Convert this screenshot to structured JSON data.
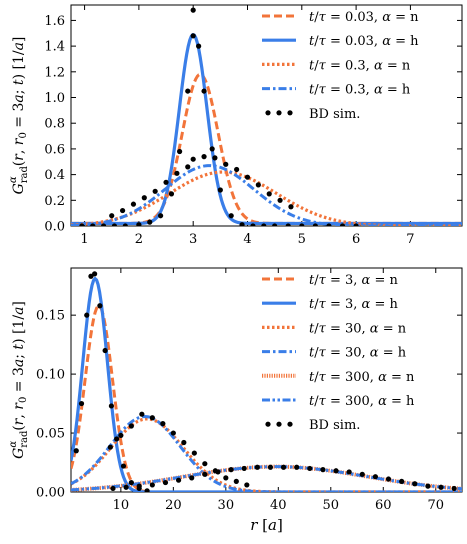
{
  "chart_data": [
    {
      "type": "line",
      "ylabel": "G_rad^α(r, r_0 = 3a; t) [1/a]",
      "xlabel": "",
      "xlim": [
        0.75,
        7.95
      ],
      "ylim": [
        0,
        1.72
      ],
      "xticks": [
        1,
        2,
        3,
        4,
        5,
        6,
        7
      ],
      "yticks": [
        0.0,
        0.2,
        0.4,
        0.6,
        0.8,
        1.0,
        1.2,
        1.4,
        1.6
      ],
      "ytick_labels": [
        "0.0",
        "0.2",
        "0.4",
        "0.6",
        "0.8",
        "1.0",
        "1.2",
        "1.4",
        "1.6"
      ],
      "legend_position": "top-right",
      "series": [
        {
          "name": "t/τ = 0.03, α = n",
          "legend": "t/τ = 0.03, α = n",
          "color": "#f2743a",
          "style": "dashed",
          "gauss": {
            "mu": 3.13,
            "sigma": 0.33,
            "A": 1.16,
            "offset": 0.02
          }
        },
        {
          "name": "t/τ = 0.03, α = h",
          "legend": "t/τ = 0.03, α = h",
          "color": "#3a7ee8",
          "style": "solid",
          "gauss": {
            "mu": 3.0,
            "sigma": 0.255,
            "A": 1.47,
            "offset": 0.02
          }
        },
        {
          "name": "t/τ = 0.3, α = n",
          "legend": "t/τ = 0.3, α = n",
          "color": "#f2743a",
          "style": "dotted",
          "gauss": {
            "mu": 3.55,
            "sigma": 0.98,
            "A": 0.42,
            "offset": 0.0
          }
        },
        {
          "name": "t/τ = 0.3, α = h",
          "legend": "t/τ = 0.3, α = h",
          "color": "#3a7ee8",
          "style": "dashdot",
          "gauss": {
            "mu": 3.3,
            "sigma": 0.82,
            "A": 0.47,
            "offset": 0.0
          }
        }
      ],
      "bd_sim": {
        "name": "BD sim.",
        "points": [
          [
            0.95,
            0.0
          ],
          [
            1.15,
            0.0
          ],
          [
            1.35,
            0.0
          ],
          [
            1.55,
            0.0
          ],
          [
            1.75,
            0.0
          ],
          [
            2.0,
            0.01
          ],
          [
            2.2,
            0.03
          ],
          [
            2.4,
            0.08
          ],
          [
            2.6,
            0.25
          ],
          [
            2.75,
            0.58
          ],
          [
            2.9,
            1.05
          ],
          [
            3.0,
            1.48
          ],
          [
            3.0,
            1.68
          ],
          [
            3.1,
            1.4
          ],
          [
            3.2,
            1.05
          ],
          [
            3.35,
            0.6
          ],
          [
            3.5,
            0.28
          ],
          [
            3.7,
            0.08
          ],
          [
            3.9,
            0.01
          ],
          [
            4.1,
            0.0
          ],
          [
            4.3,
            0.0
          ],
          [
            4.5,
            0.0
          ],
          [
            4.75,
            0.0
          ],
          [
            5.0,
            0.0
          ],
          [
            5.25,
            0.0
          ],
          [
            5.5,
            0.0
          ],
          [
            5.75,
            0.0
          ],
          [
            6.0,
            0.0
          ],
          [
            1.5,
            0.08
          ],
          [
            1.7,
            0.12
          ],
          [
            1.9,
            0.17
          ],
          [
            2.1,
            0.22
          ],
          [
            2.3,
            0.27
          ],
          [
            2.5,
            0.34
          ],
          [
            2.7,
            0.41
          ],
          [
            2.9,
            0.46
          ],
          [
            3.0,
            0.52
          ],
          [
            3.2,
            0.54
          ],
          [
            3.4,
            0.53
          ],
          [
            3.6,
            0.48
          ],
          [
            3.8,
            0.44
          ],
          [
            4.0,
            0.38
          ],
          [
            4.2,
            0.32
          ],
          [
            4.4,
            0.25
          ],
          [
            4.6,
            0.2
          ],
          [
            4.8,
            0.15
          ]
        ]
      }
    },
    {
      "type": "line",
      "ylabel": "G_rad^α(r, r_0 = 3a; t) [1/a]",
      "xlabel": "r [a]",
      "xlim": [
        0.5,
        75
      ],
      "ylim": [
        0,
        0.19
      ],
      "xticks": [
        10,
        20,
        30,
        40,
        50,
        60,
        70
      ],
      "yticks": [
        0.0,
        0.05,
        0.1,
        0.15
      ],
      "ytick_labels": [
        "0.00",
        "0.05",
        "0.10",
        "0.15"
      ],
      "legend_position": "top-right",
      "series": [
        {
          "name": "t/τ = 3, α = n",
          "legend": "t/τ = 3, α = n",
          "color": "#f2743a",
          "style": "dashed",
          "gauss": {
            "mu": 5.8,
            "sigma": 2.6,
            "A": 0.158,
            "offset": 0.0
          }
        },
        {
          "name": "t/τ = 3, α = h",
          "legend": "t/τ = 3, α = h",
          "color": "#3a7ee8",
          "style": "solid",
          "gauss": {
            "mu": 5.1,
            "sigma": 2.35,
            "A": 0.181,
            "offset": 0.0
          }
        },
        {
          "name": "t/τ = 30, α = n",
          "legend": "t/τ = 30, α = n",
          "color": "#f2743a",
          "style": "dotted",
          "gauss": {
            "mu": 15.0,
            "sigma": 6.9,
            "A": 0.062,
            "offset": 0.0
          }
        },
        {
          "name": "t/τ = 30, α = h",
          "legend": "t/τ = 30, α = h",
          "color": "#3a7ee8",
          "style": "dashdot",
          "gauss": {
            "mu": 14.6,
            "sigma": 6.7,
            "A": 0.064,
            "offset": 0.0
          }
        },
        {
          "name": "t/τ = 300, α = n",
          "legend": "t/τ = 300, α = n",
          "color": "#f2743a",
          "style": "loosedense",
          "gauss": {
            "mu": 39.5,
            "sigma": 17.5,
            "A": 0.0215,
            "offset": 0.0
          }
        },
        {
          "name": "t/τ = 300, α = h",
          "legend": "t/τ = 300, α = h",
          "color": "#3a7ee8",
          "style": "dashdotdot",
          "gauss": {
            "mu": 39.5,
            "sigma": 17.5,
            "A": 0.0215,
            "offset": 0.0
          }
        }
      ],
      "bd_sim": {
        "name": "BD sim.",
        "points": [
          [
            1.5,
            0.035
          ],
          [
            2.5,
            0.075
          ],
          [
            3.5,
            0.15
          ],
          [
            4.3,
            0.183
          ],
          [
            5.0,
            0.185
          ],
          [
            6.0,
            0.158
          ],
          [
            7.0,
            0.12
          ],
          [
            8.2,
            0.073
          ],
          [
            9.2,
            0.045
          ],
          [
            10.5,
            0.022
          ],
          [
            12.0,
            0.008
          ],
          [
            13.5,
            0.003
          ],
          [
            15.0,
            0.001
          ],
          [
            8.0,
            0.038
          ],
          [
            10.0,
            0.048
          ],
          [
            12.0,
            0.056
          ],
          [
            14.0,
            0.066
          ],
          [
            16.0,
            0.063
          ],
          [
            18.0,
            0.058
          ],
          [
            20.0,
            0.05
          ],
          [
            22.0,
            0.042
          ],
          [
            24.0,
            0.033
          ],
          [
            26.0,
            0.024
          ],
          [
            28.0,
            0.018
          ],
          [
            30.0,
            0.012
          ],
          [
            32.0,
            0.009
          ],
          [
            34.0,
            0.006
          ],
          [
            8.5,
            0.003
          ],
          [
            11.0,
            0.004
          ],
          [
            13.5,
            0.005
          ],
          [
            16.0,
            0.006
          ],
          [
            18.5,
            0.008
          ],
          [
            21.0,
            0.01
          ],
          [
            23.5,
            0.012
          ],
          [
            26.0,
            0.015
          ],
          [
            28.5,
            0.017
          ],
          [
            31.0,
            0.019
          ],
          [
            33.5,
            0.02
          ],
          [
            36.0,
            0.021
          ],
          [
            38.5,
            0.021
          ],
          [
            41.0,
            0.021
          ],
          [
            43.5,
            0.021
          ],
          [
            46.0,
            0.02
          ],
          [
            48.5,
            0.019
          ],
          [
            51.0,
            0.018
          ],
          [
            53.5,
            0.017
          ],
          [
            56.0,
            0.015
          ],
          [
            58.5,
            0.013
          ],
          [
            61.0,
            0.011
          ],
          [
            63.5,
            0.009
          ],
          [
            66.0,
            0.007
          ],
          [
            68.5,
            0.005
          ],
          [
            71.0,
            0.004
          ],
          [
            73.5,
            0.003
          ]
        ]
      }
    }
  ]
}
